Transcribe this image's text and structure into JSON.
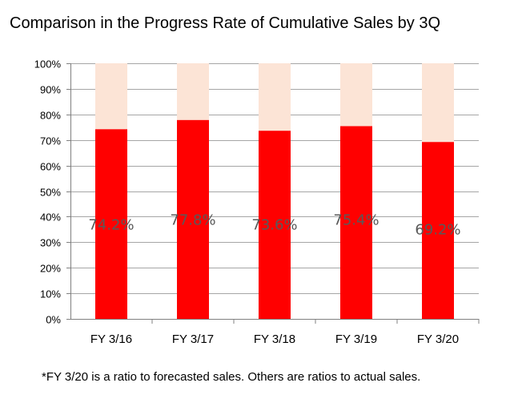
{
  "title": "Comparison in the Progress Rate of Cumulative Sales by 3Q",
  "footnote": "*FY 3/20 is a ratio to forecasted sales. Others are ratios to actual sales.",
  "colors": {
    "bar_fill": "#ff0000",
    "bar_remainder": "#fce4d6",
    "gridline": "#a6a6a6",
    "axis_line": "#808080",
    "text": "#000000",
    "data_label": "#595959"
  },
  "chart_data": {
    "type": "bar",
    "stacked_to_100_percent": true,
    "title": "Comparison in the Progress Rate of Cumulative Sales by 3Q",
    "categories": [
      "FY 3/16",
      "FY 3/17",
      "FY 3/18",
      "FY 3/19",
      "FY 3/20"
    ],
    "values": [
      74.2,
      77.8,
      73.6,
      75.4,
      69.2
    ],
    "data_labels": [
      "74.2%",
      "77.8%",
      "73.6%",
      "75.4%",
      "69.2%"
    ],
    "ylim": [
      0,
      100
    ],
    "yticks": [
      0,
      10,
      20,
      30,
      40,
      50,
      60,
      70,
      80,
      90,
      100
    ],
    "ytick_labels": [
      "0%",
      "10%",
      "20%",
      "30%",
      "40%",
      "50%",
      "60%",
      "70%",
      "80%",
      "90%",
      "100%"
    ],
    "grid": true,
    "legend": "none"
  }
}
